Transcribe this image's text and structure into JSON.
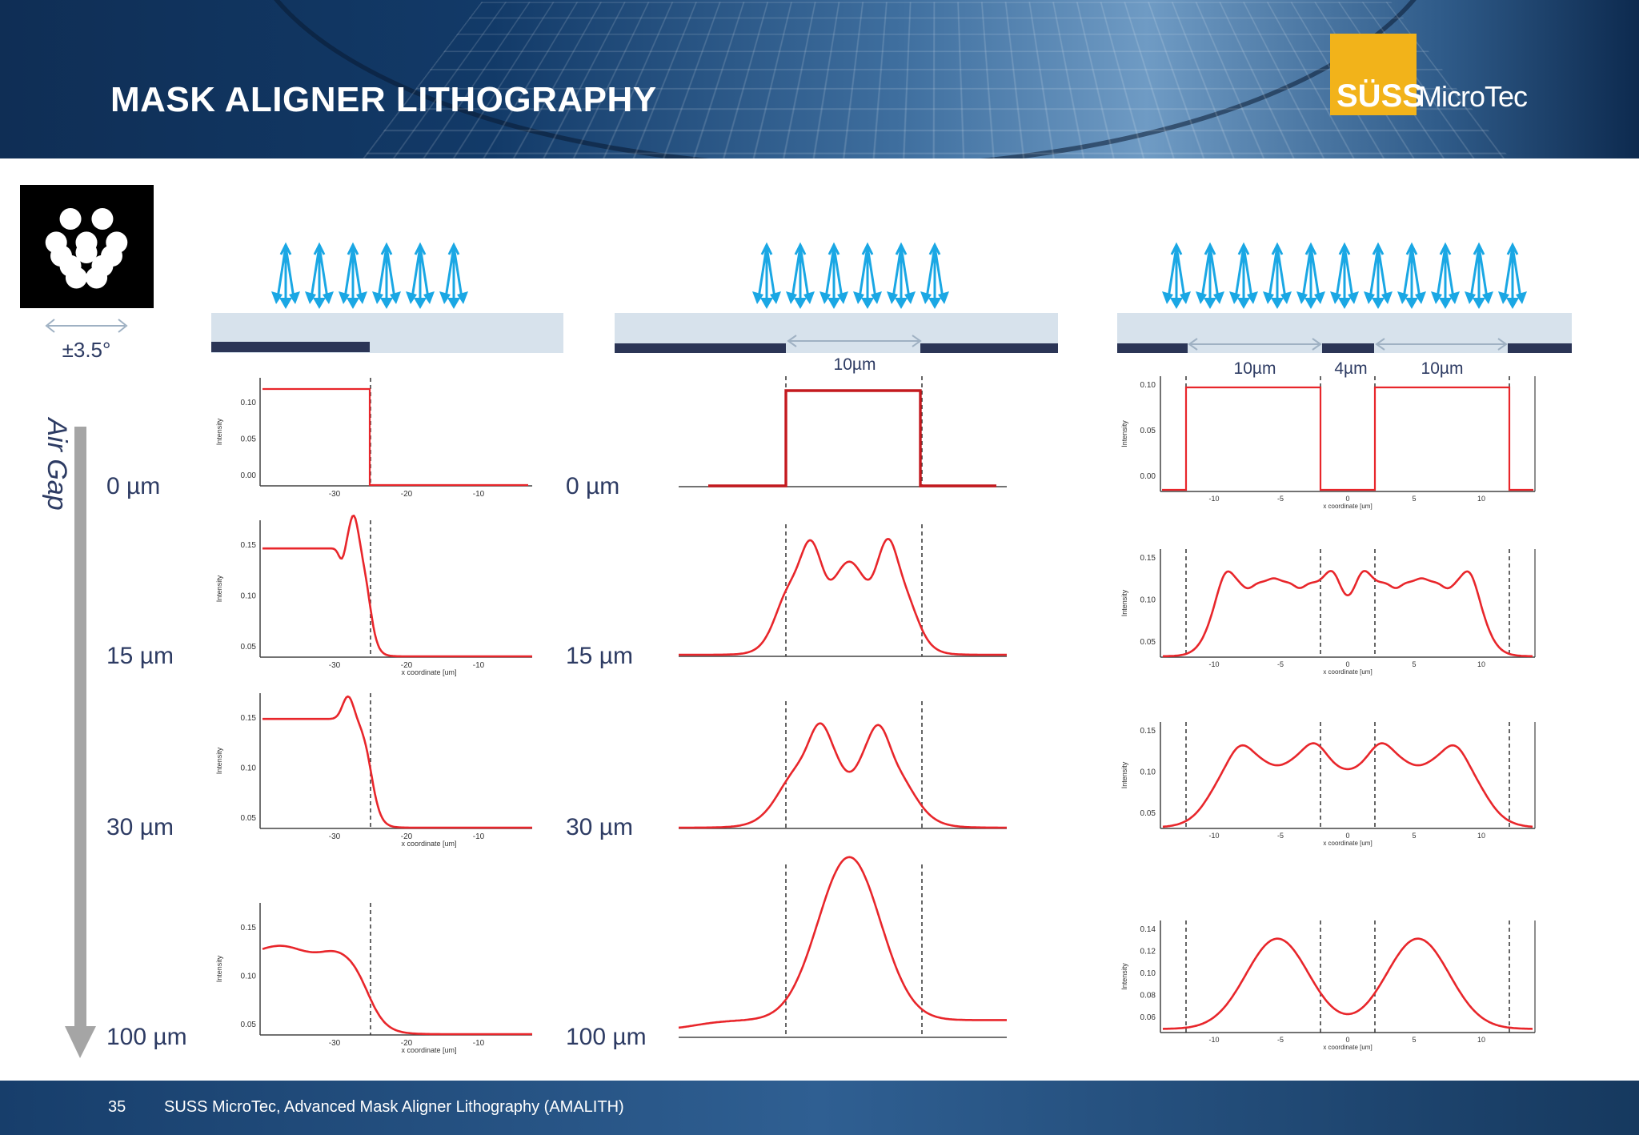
{
  "header": {
    "title": "MASK ALIGNER LITHOGRAPHY",
    "logo_left": "SÜSS",
    "logo_right": "MicroTec",
    "logo_plus": "+"
  },
  "illumination": {
    "angle": "±3.5°"
  },
  "axis": {
    "label": "Air Gap"
  },
  "gaps": [
    "0 µm",
    "15 µm",
    "30 µm",
    "100 µm"
  ],
  "gaps_mid": [
    "0 µm",
    "15 µm",
    "30 µm",
    "100 µm"
  ],
  "dims": {
    "mid_width": "10µm",
    "right_a": "10µm",
    "right_b": "4µm",
    "right_c": "10µm"
  },
  "plot_text": {
    "ylabel": "Intensity",
    "xlabel": "x coordinate [um]"
  },
  "left_ticks_x": [
    "-30",
    "-20",
    "-10"
  ],
  "right_ticks_x": [
    "-10",
    "-5",
    "0",
    "5",
    "10"
  ],
  "left_yticks": [
    [
      "0.10",
      "0.05",
      "0.00"
    ],
    [
      "0.15",
      "0.10",
      "0.05"
    ],
    [
      "0.15",
      "0.10",
      "0.05"
    ],
    [
      "0.15",
      "0.10",
      "0.05"
    ]
  ],
  "right_yticks": [
    [
      "0.10",
      "0.05",
      "0.00"
    ],
    [
      "0.15",
      "0.10",
      "0.05"
    ],
    [
      "0.15",
      "0.10",
      "0.05"
    ],
    [
      "0.14",
      "0.12",
      "0.10",
      "0.08",
      "0.06"
    ]
  ],
  "footer": {
    "page": "35",
    "text": "SUSS MicroTec, Advanced Mask Aligner Lithography (AMALITH)"
  },
  "colors": {
    "curve": "#e8262b",
    "arrow": "#1aa7e4",
    "mask_dark": "#2b3556",
    "mask_glass": "#d7e2ec",
    "axis_arrow": "#a5a5a5"
  }
}
